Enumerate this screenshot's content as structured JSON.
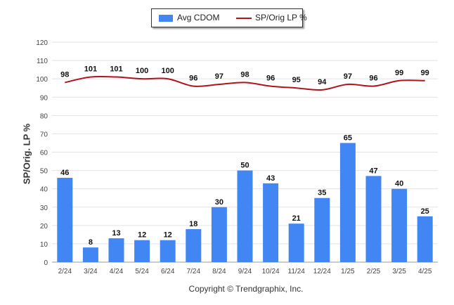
{
  "chart_data": {
    "type": "bar+line",
    "categories": [
      "2/24",
      "3/24",
      "4/24",
      "5/24",
      "6/24",
      "7/24",
      "8/24",
      "9/24",
      "10/24",
      "11/24",
      "12/24",
      "1/25",
      "2/25",
      "3/25",
      "4/25"
    ],
    "series": [
      {
        "name": "Avg CDOM",
        "type": "bar",
        "color": "#4286f4",
        "values": [
          46,
          8,
          13,
          12,
          12,
          18,
          30,
          50,
          43,
          21,
          35,
          65,
          47,
          40,
          25
        ]
      },
      {
        "name": "SP/Orig LP %",
        "type": "line",
        "color": "#b0141a",
        "values": [
          98,
          101,
          101,
          100,
          100,
          96,
          97,
          98,
          96,
          95,
          94,
          97,
          96,
          99,
          99
        ]
      }
    ],
    "ylabel": "SP/Orig. LP %",
    "ylim": [
      0,
      120
    ],
    "yticks": [
      0,
      10,
      20,
      30,
      40,
      50,
      60,
      70,
      80,
      90,
      100,
      110,
      120
    ],
    "grid": true,
    "legend_position": "top-center"
  },
  "legend": {
    "bar_label": "Avg CDOM",
    "line_label": "SP/Orig LP %"
  },
  "footer": {
    "copyright": "Copyright © Trendgraphix, Inc."
  }
}
